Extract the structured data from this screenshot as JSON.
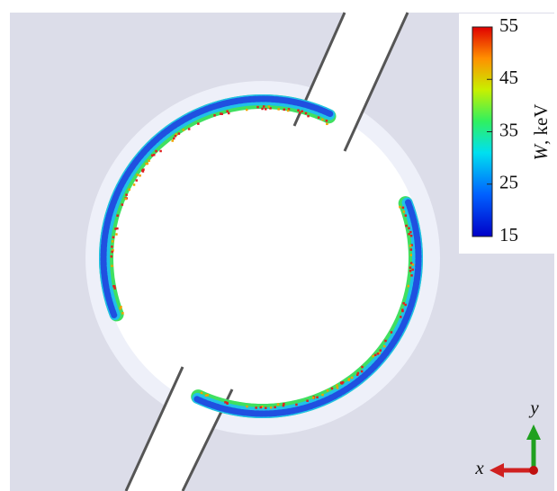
{
  "colorbar": {
    "label_var": "W",
    "label_unit": ", keV",
    "range": [
      15,
      55
    ],
    "ticks": [
      15,
      25,
      35,
      45,
      55
    ]
  },
  "axes": {
    "x": "x",
    "y": "y"
  }
}
